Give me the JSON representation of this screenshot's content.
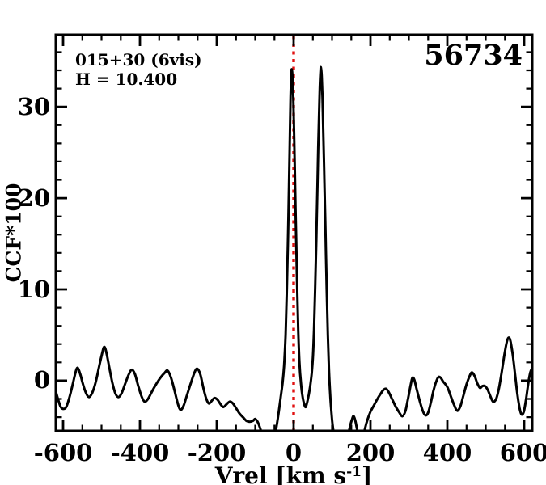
{
  "chart_data": {
    "type": "line",
    "title": "",
    "ylabel": "CCF*100",
    "xlabel": {
      "prefix": "Vrel [km s",
      "sup": "-1",
      "suffix": "]"
    },
    "annotations": {
      "field": "015+30 (6vis)",
      "hmag": "H = 10.400",
      "mjd": "56734"
    },
    "xlim": [
      -619,
      621
    ],
    "ylim": [
      -5.5,
      37.9
    ],
    "xticks": {
      "major": [
        -600,
        -400,
        -200,
        0,
        200,
        400,
        600
      ],
      "labels": [
        "-600",
        "-400",
        "-200",
        "0",
        "200",
        "400",
        "600"
      ],
      "minor_step": 50
    },
    "yticks": {
      "major": [
        0,
        10,
        20,
        30
      ],
      "labels": [
        "0",
        "10",
        "20",
        "30"
      ],
      "minor_step": 2
    },
    "grid": false,
    "legend": "none",
    "frame_color": "#000000",
    "background": "#ffffff",
    "reference_line": {
      "x": 0,
      "color": "#e01010",
      "style": "dotted"
    },
    "series": [
      {
        "name": "ccf-curve",
        "color": "#000000",
        "points": [
          [
            -619,
            -1.2
          ],
          [
            -612,
            -2.2
          ],
          [
            -606,
            -2.9
          ],
          [
            -599,
            -3.1
          ],
          [
            -592,
            -2.9
          ],
          [
            -584,
            -1.9
          ],
          [
            -575,
            -0.4
          ],
          [
            -567,
            1.0
          ],
          [
            -562,
            1.4
          ],
          [
            -556,
            0.8
          ],
          [
            -549,
            -0.3
          ],
          [
            -541,
            -1.3
          ],
          [
            -533,
            -1.8
          ],
          [
            -525,
            -1.4
          ],
          [
            -516,
            -0.3
          ],
          [
            -507,
            1.4
          ],
          [
            -499,
            2.9
          ],
          [
            -493,
            3.7
          ],
          [
            -487,
            3.0
          ],
          [
            -480,
            1.5
          ],
          [
            -472,
            -0.2
          ],
          [
            -464,
            -1.4
          ],
          [
            -456,
            -1.8
          ],
          [
            -448,
            -1.4
          ],
          [
            -439,
            -0.4
          ],
          [
            -429,
            0.7
          ],
          [
            -421,
            1.2
          ],
          [
            -413,
            0.7
          ],
          [
            -405,
            -0.5
          ],
          [
            -396,
            -1.7
          ],
          [
            -388,
            -2.3
          ],
          [
            -379,
            -2.0
          ],
          [
            -369,
            -1.2
          ],
          [
            -358,
            -0.4
          ],
          [
            -347,
            0.3
          ],
          [
            -337,
            0.8
          ],
          [
            -328,
            1.1
          ],
          [
            -319,
            0.3
          ],
          [
            -310,
            -1.1
          ],
          [
            -301,
            -2.6
          ],
          [
            -294,
            -3.2
          ],
          [
            -286,
            -2.7
          ],
          [
            -277,
            -1.5
          ],
          [
            -267,
            -0.2
          ],
          [
            -258,
            0.9
          ],
          [
            -251,
            1.3
          ],
          [
            -243,
            0.7
          ],
          [
            -235,
            -0.8
          ],
          [
            -228,
            -1.9
          ],
          [
            -221,
            -2.5
          ],
          [
            -213,
            -2.2
          ],
          [
            -206,
            -1.9
          ],
          [
            -198,
            -2.1
          ],
          [
            -190,
            -2.6
          ],
          [
            -183,
            -2.9
          ],
          [
            -175,
            -2.6
          ],
          [
            -166,
            -2.3
          ],
          [
            -158,
            -2.5
          ],
          [
            -150,
            -3.0
          ],
          [
            -141,
            -3.6
          ],
          [
            -132,
            -4.0
          ],
          [
            -123,
            -4.4
          ],
          [
            -114,
            -4.5
          ],
          [
            -106,
            -4.4
          ],
          [
            -100,
            -4.2
          ],
          [
            -94,
            -4.5
          ],
          [
            -88,
            -5.1
          ],
          [
            -83,
            -5.8
          ],
          [
            -76,
            -6.8
          ],
          [
            -66,
            -7.5
          ],
          [
            -57,
            -7.2
          ],
          [
            -50,
            -6.2
          ],
          [
            -44,
            -4.9
          ],
          [
            -39,
            -3.5
          ],
          [
            -34,
            -1.9
          ],
          [
            -29,
            -0.3
          ],
          [
            -25,
            1.6
          ],
          [
            -21,
            5.0
          ],
          [
            -18,
            9.5
          ],
          [
            -15,
            15.0
          ],
          [
            -12,
            21.5
          ],
          [
            -10,
            26.5
          ],
          [
            -8,
            31.0
          ],
          [
            -6,
            33.6
          ],
          [
            -5,
            34.1
          ],
          [
            -3,
            33.3
          ],
          [
            -1,
            31.0
          ],
          [
            1,
            27.5
          ],
          [
            3,
            23.0
          ],
          [
            6,
            16.5
          ],
          [
            9,
            10.5
          ],
          [
            12,
            5.5
          ],
          [
            15,
            2.0
          ],
          [
            19,
            -0.3
          ],
          [
            23,
            -1.7
          ],
          [
            27,
            -2.5
          ],
          [
            31,
            -2.9
          ],
          [
            35,
            -2.4
          ],
          [
            39,
            -1.6
          ],
          [
            43,
            -0.6
          ],
          [
            47,
            0.8
          ],
          [
            50,
            2.5
          ],
          [
            53,
            5.5
          ],
          [
            56,
            10.0
          ],
          [
            59,
            15.5
          ],
          [
            62,
            21.5
          ],
          [
            64,
            25.5
          ],
          [
            66,
            29.0
          ],
          [
            68,
            32.0
          ],
          [
            70,
            34.0
          ],
          [
            71,
            34.3
          ],
          [
            73,
            33.4
          ],
          [
            75,
            31.0
          ],
          [
            77,
            27.5
          ],
          [
            80,
            22.0
          ],
          [
            83,
            16.0
          ],
          [
            86,
            10.0
          ],
          [
            89,
            5.0
          ],
          [
            92,
            1.2
          ],
          [
            95,
            -1.5
          ],
          [
            98,
            -3.3
          ],
          [
            101,
            -4.7
          ],
          [
            105,
            -6.0
          ],
          [
            111,
            -7.2
          ],
          [
            119,
            -7.9
          ],
          [
            128,
            -7.6
          ],
          [
            136,
            -6.8
          ],
          [
            143,
            -5.7
          ],
          [
            148,
            -4.8
          ],
          [
            153,
            -4.1
          ],
          [
            156,
            -3.9
          ],
          [
            160,
            -4.3
          ],
          [
            164,
            -5.1
          ],
          [
            169,
            -6.1
          ],
          [
            175,
            -6.6
          ],
          [
            181,
            -6.1
          ],
          [
            186,
            -5.2
          ],
          [
            192,
            -4.3
          ],
          [
            200,
            -3.4
          ],
          [
            209,
            -2.7
          ],
          [
            218,
            -2.0
          ],
          [
            227,
            -1.4
          ],
          [
            234,
            -1.0
          ],
          [
            241,
            -0.9
          ],
          [
            248,
            -1.3
          ],
          [
            256,
            -2.0
          ],
          [
            265,
            -2.8
          ],
          [
            275,
            -3.5
          ],
          [
            283,
            -3.9
          ],
          [
            291,
            -3.3
          ],
          [
            298,
            -1.9
          ],
          [
            304,
            -0.6
          ],
          [
            309,
            0.3
          ],
          [
            314,
            0.1
          ],
          [
            320,
            -0.9
          ],
          [
            328,
            -2.2
          ],
          [
            336,
            -3.3
          ],
          [
            343,
            -3.8
          ],
          [
            350,
            -3.5
          ],
          [
            357,
            -2.4
          ],
          [
            364,
            -1.1
          ],
          [
            371,
            -0.1
          ],
          [
            377,
            0.4
          ],
          [
            383,
            0.3
          ],
          [
            389,
            -0.1
          ],
          [
            395,
            -0.4
          ],
          [
            401,
            -0.8
          ],
          [
            409,
            -1.7
          ],
          [
            418,
            -2.7
          ],
          [
            426,
            -3.3
          ],
          [
            434,
            -2.8
          ],
          [
            442,
            -1.6
          ],
          [
            450,
            -0.4
          ],
          [
            458,
            0.5
          ],
          [
            464,
            0.9
          ],
          [
            471,
            0.5
          ],
          [
            478,
            -0.3
          ],
          [
            485,
            -0.8
          ],
          [
            491,
            -0.6
          ],
          [
            498,
            -0.6
          ],
          [
            505,
            -1.0
          ],
          [
            512,
            -1.7
          ],
          [
            519,
            -2.3
          ],
          [
            527,
            -2.0
          ],
          [
            534,
            -0.9
          ],
          [
            541,
            0.8
          ],
          [
            548,
            2.7
          ],
          [
            554,
            4.1
          ],
          [
            559,
            4.7
          ],
          [
            564,
            4.4
          ],
          [
            570,
            2.9
          ],
          [
            576,
            0.8
          ],
          [
            582,
            -1.4
          ],
          [
            588,
            -3.0
          ],
          [
            593,
            -3.7
          ],
          [
            599,
            -3.4
          ],
          [
            605,
            -2.0
          ],
          [
            611,
            -0.2
          ],
          [
            616,
            0.9
          ],
          [
            620,
            1.3
          ]
        ]
      }
    ]
  }
}
